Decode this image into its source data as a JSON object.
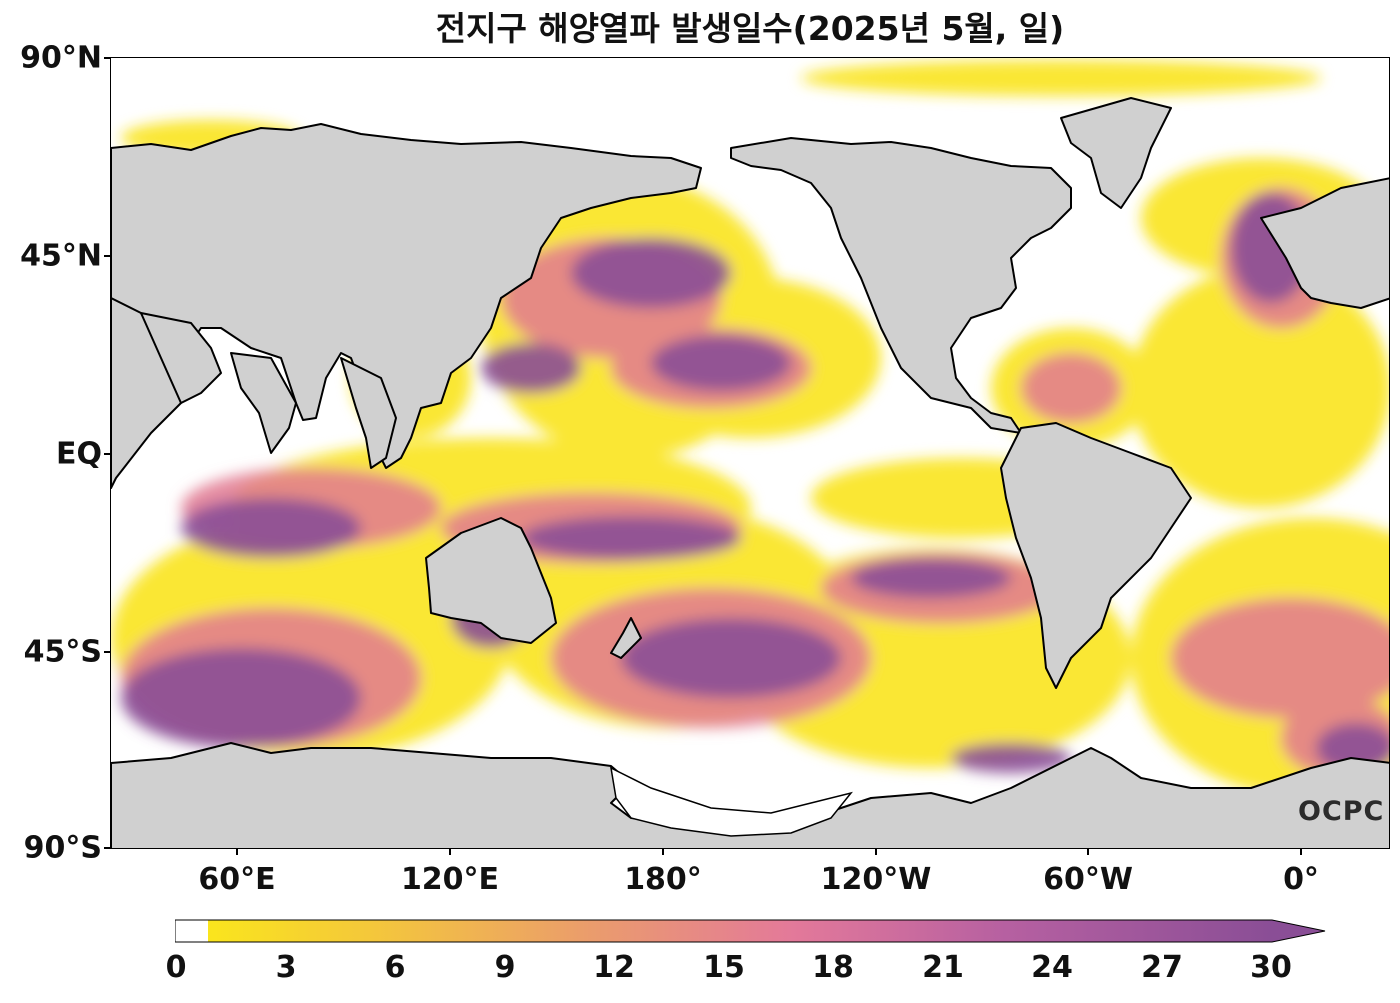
{
  "title": "전지구 해양열파 발생일수(2025년 5월, 일)",
  "y_axis": [
    {
      "label": "90°N",
      "lat": 90
    },
    {
      "label": "45°N",
      "lat": 45
    },
    {
      "label": "EQ",
      "lat": 0
    },
    {
      "label": "45°S",
      "lat": -45
    },
    {
      "label": "90°S",
      "lat": -90
    }
  ],
  "x_axis": [
    {
      "label": "60°E",
      "lon": 60
    },
    {
      "label": "120°E",
      "lon": 120
    },
    {
      "label": "180°",
      "lon": 180
    },
    {
      "label": "120°W",
      "lon": 240
    },
    {
      "label": "60°W",
      "lon": 300
    },
    {
      "label": "0°",
      "lon": 360
    }
  ],
  "colorbar": {
    "ticks": [
      "0",
      "3",
      "6",
      "9",
      "12",
      "15",
      "18",
      "21",
      "24",
      "27",
      "30"
    ],
    "min": 0,
    "max": 30,
    "extend": "max",
    "colors": {
      "zero": "#ffffff",
      "low": "#fae51d",
      "mid": "#e8758f",
      "high": "#8a4e96"
    }
  },
  "logo": "OCPC",
  "map_colors": {
    "land": "#d0d0d0",
    "coast": "#000000",
    "ocean_none": "#ffffff"
  }
}
